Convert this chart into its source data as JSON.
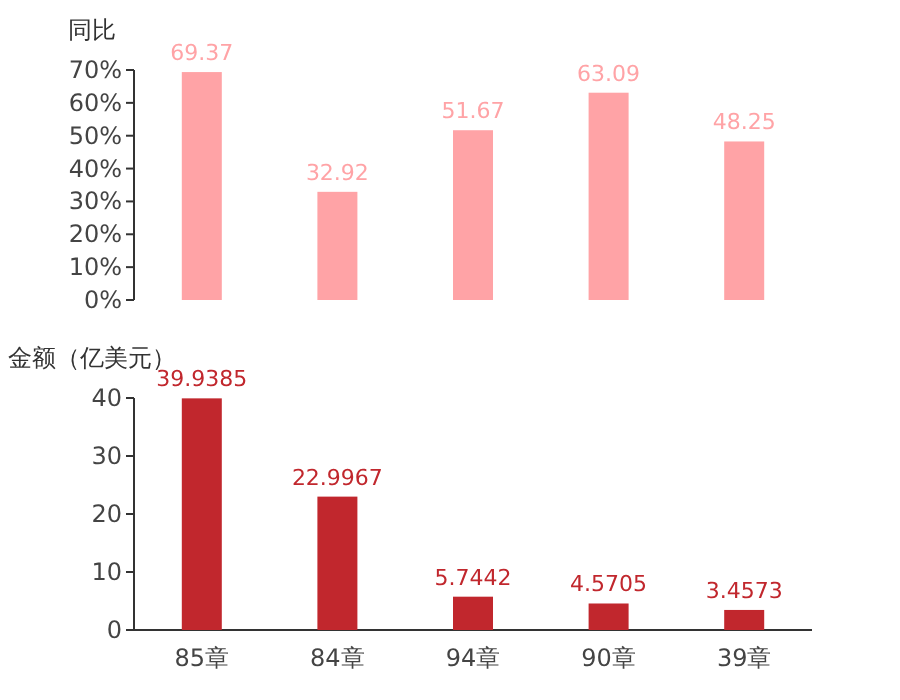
{
  "chart_data": [
    {
      "type": "bar",
      "ylabel": "同比",
      "categories": [
        null,
        null,
        null,
        null,
        null
      ],
      "values": [
        69.37,
        32.92,
        51.67,
        63.09,
        48.25
      ],
      "color": "#ffa3a6",
      "ylim": [
        0,
        70
      ],
      "yticks": [
        {
          "value": 0,
          "label": "0%"
        },
        {
          "value": 10,
          "label": "10%"
        },
        {
          "value": 20,
          "label": "20%"
        },
        {
          "value": 30,
          "label": "30%"
        },
        {
          "value": 40,
          "label": "40%"
        },
        {
          "value": 50,
          "label": "50%"
        },
        {
          "value": 60,
          "label": "60%"
        },
        {
          "value": 70,
          "label": "70%"
        }
      ],
      "data_labels": true,
      "tick_labels": "y"
    },
    {
      "type": "bar",
      "ylabel": "金额（亿美元）",
      "categories": [
        "85章",
        "84章",
        "94章",
        "90章",
        "39章"
      ],
      "values": [
        39.9385,
        22.9967,
        5.7442,
        4.5705,
        3.4573
      ],
      "color": "#c1272d",
      "ylim": [
        0,
        40
      ],
      "yticks": [
        0,
        10,
        20,
        30,
        40
      ],
      "data_labels": true
    }
  ]
}
